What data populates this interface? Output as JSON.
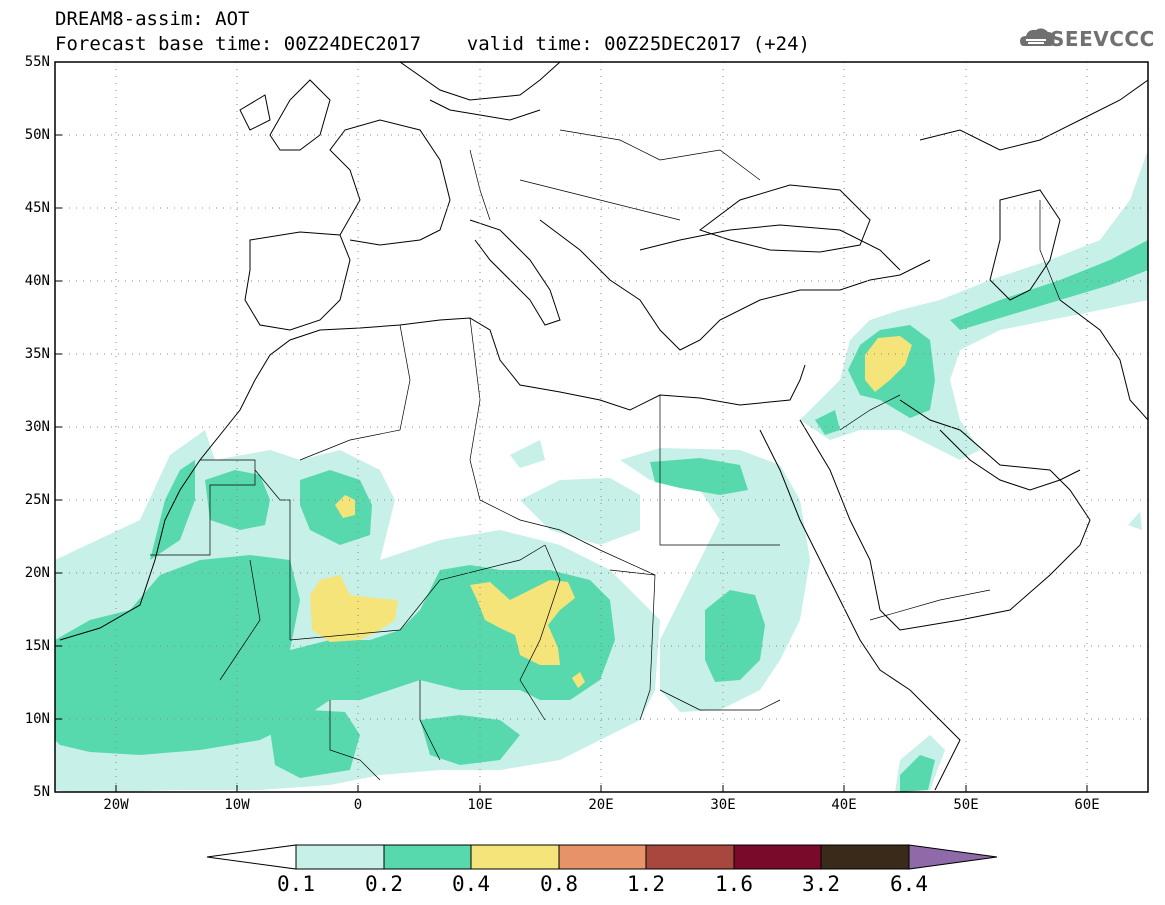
{
  "title": {
    "line1": "DREAM8-assim: AOT",
    "line2": "Forecast base time: 00Z24DEC2017    valid time: 00Z25DEC2017 (+24)"
  },
  "logo": {
    "text": "SEEVCCC",
    "icon": "cloud-icon"
  },
  "map": {
    "projection": "lat-lon",
    "lon_range": [
      -25,
      65
    ],
    "lat_range": [
      5,
      55
    ],
    "lat_ticks": [
      "55N",
      "50N",
      "45N",
      "40N",
      "35N",
      "30N",
      "25N",
      "20N",
      "15N",
      "10N",
      "5N"
    ],
    "lon_ticks": [
      "20W",
      "10W",
      "0",
      "10E",
      "20E",
      "30E",
      "40E",
      "50E",
      "60E"
    ]
  },
  "colorbar": {
    "labels": [
      "0.1",
      "0.2",
      "0.4",
      "0.8",
      "1.2",
      "1.6",
      "3.2",
      "6.4"
    ],
    "colors": [
      "#ffffff",
      "#c6f0e8",
      "#58d9ad",
      "#f5e47a",
      "#e8926a",
      "#a8473e",
      "#7a0a2a",
      "#3a2a1a",
      "#8e6aa8"
    ]
  },
  "colors": {
    "aot_0_1": "#c6f0e8",
    "aot_0_2": "#58d9ad",
    "aot_0_4": "#f5e47a"
  }
}
